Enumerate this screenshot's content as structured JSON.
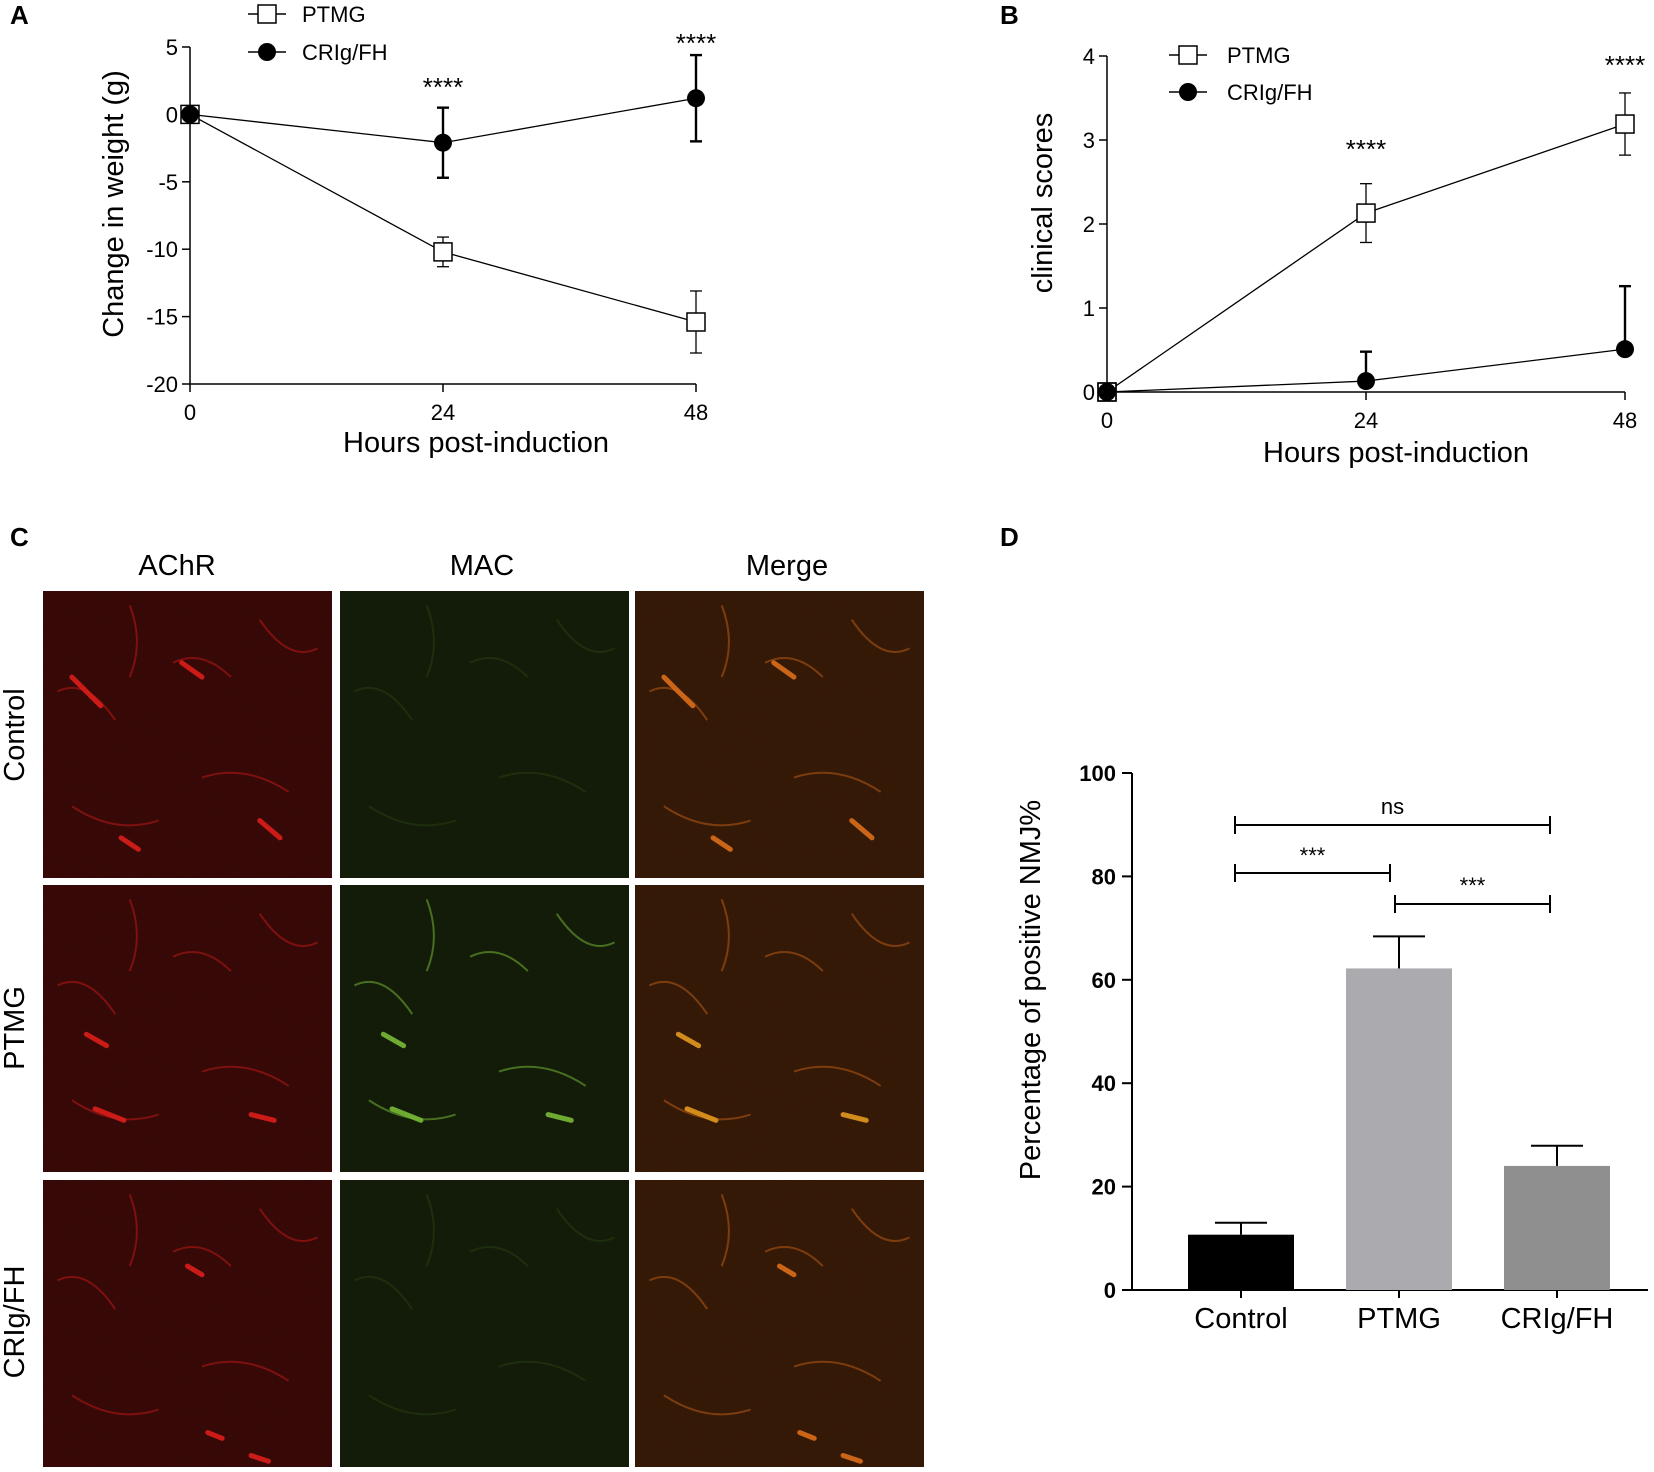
{
  "panels": {
    "a": "A",
    "b": "B",
    "c": "C",
    "d": "D"
  },
  "chart_data": [
    {
      "type": "line",
      "panel": "A",
      "xlabel": "Hours post-induction",
      "ylabel": "Change in weight (g)",
      "xlim": [
        0,
        48
      ],
      "ylim": [
        -20,
        5
      ],
      "xticks": [
        "0",
        "24",
        "48"
      ],
      "yticks": [
        "5",
        "0",
        "-5",
        "-10",
        "-15",
        "-20"
      ],
      "x": [
        0,
        24,
        48
      ],
      "legend_position": "top-left",
      "series": [
        {
          "name": "PTMG",
          "marker": "open-square",
          "values": [
            0,
            -10.2,
            -15.4
          ],
          "error": [
            0,
            1.1,
            2.3
          ]
        },
        {
          "name": "CRIg/FH",
          "marker": "filled-circle",
          "values": [
            0,
            -2.1,
            1.2
          ],
          "error": [
            0,
            2.6,
            3.2
          ]
        }
      ],
      "annotations": [
        {
          "x": 24,
          "text": "****"
        },
        {
          "x": 48,
          "text": "****"
        }
      ]
    },
    {
      "type": "line",
      "panel": "B",
      "xlabel": "Hours post-induction",
      "ylabel": "clinical scores",
      "xlim": [
        0,
        48
      ],
      "ylim": [
        0,
        4
      ],
      "xticks": [
        "0",
        "24",
        "48"
      ],
      "yticks": [
        "4",
        "3",
        "2",
        "1",
        "0"
      ],
      "x": [
        0,
        24,
        48
      ],
      "legend_position": "top-left",
      "series": [
        {
          "name": "PTMG",
          "marker": "open-square",
          "values": [
            0,
            2.13,
            3.19
          ],
          "error": [
            0,
            0.35,
            0.37
          ]
        },
        {
          "name": "CRIg/FH",
          "marker": "filled-circle",
          "values": [
            0,
            0.13,
            0.51
          ],
          "error": [
            0,
            0.35,
            0.75
          ]
        }
      ],
      "annotations": [
        {
          "x": 24,
          "text": "****"
        },
        {
          "x": 48,
          "text": "****"
        }
      ]
    },
    {
      "type": "bar",
      "panel": "D",
      "ylabel": "Percentage of  positive NMJ%",
      "ylim": [
        0,
        100
      ],
      "yticks": [
        "100",
        "80",
        "60",
        "40",
        "20",
        "0"
      ],
      "categories": [
        "Control",
        "PTMG",
        "CRIg/FH"
      ],
      "values": [
        10.7,
        62.2,
        24
      ],
      "error": [
        2.3,
        6.2,
        3.9
      ],
      "bar_colors": [
        "#000000",
        "#abaaae",
        "#8f8f8f"
      ],
      "comparisons": [
        {
          "from": "Control",
          "to": "CRIg/FH",
          "text": "ns"
        },
        {
          "from": "Control",
          "to": "PTMG",
          "text": "***"
        },
        {
          "from": "PTMG",
          "to": "CRIg/FH",
          "text": "***"
        }
      ]
    }
  ],
  "panel_c": {
    "columns": [
      "AChR",
      "MAC",
      "Merge"
    ],
    "rows": [
      "Control",
      "PTMG",
      "CRIg/FH"
    ],
    "channel_colors": {
      "AChR": "#e8201c",
      "MAC": "#7fc43a",
      "Merge": "#e8741c"
    }
  }
}
